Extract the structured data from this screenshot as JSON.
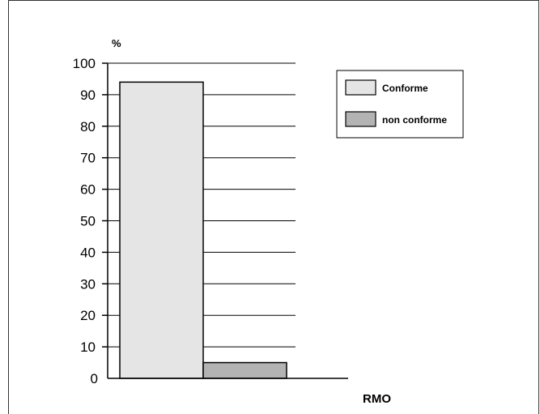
{
  "chart_data": {
    "type": "bar",
    "title": "",
    "ylabel": "%",
    "xlabel": "",
    "categories": [
      "RMO"
    ],
    "series": [
      {
        "name": "Conforme",
        "values": [
          94
        ],
        "color": "#e5e5e5"
      },
      {
        "name": "non conforme",
        "values": [
          5
        ],
        "color": "#b3b3b3"
      }
    ],
    "ylim": [
      0,
      100
    ],
    "yticks": [
      "0",
      "10",
      "20",
      "30",
      "40",
      "50",
      "60",
      "70",
      "80",
      "90",
      "100"
    ],
    "grid": true,
    "legend_position": "top-right"
  }
}
